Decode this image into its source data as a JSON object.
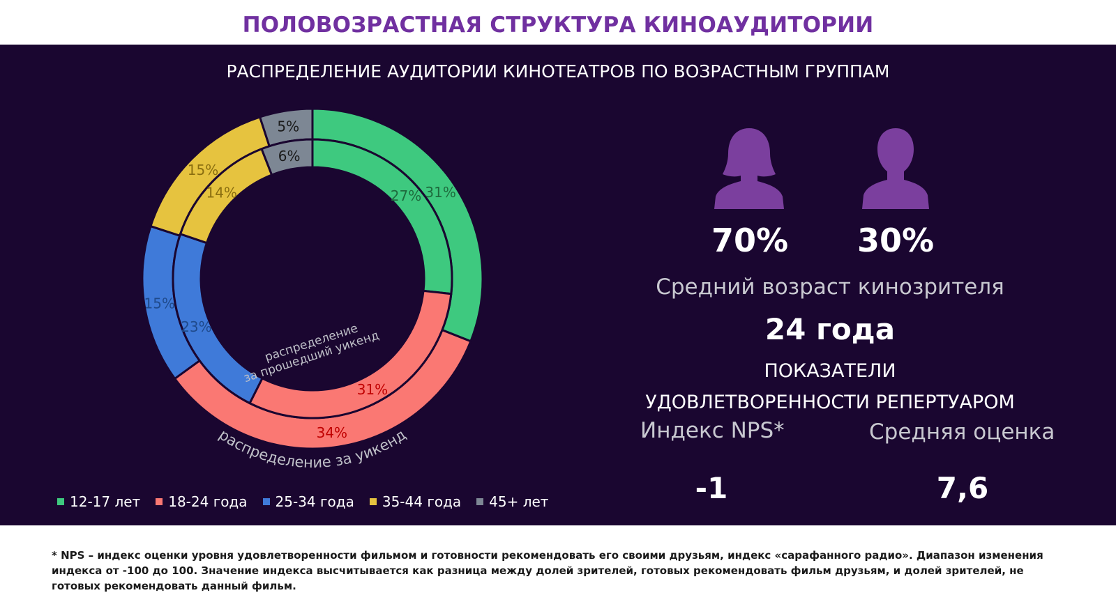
{
  "header": {
    "title": "ПОЛОВОЗРАСТНАЯ СТРУКТУРА КИНОАУДИТОРИИ",
    "subtitle": "РАСПРЕДЕЛЕНИЕ АУДИТОРИИ КИНОТЕАТРОВ ПО ВОЗРАСТНЫМ ГРУППАМ"
  },
  "chart_data": {
    "type": "pie",
    "subtype": "double-donut",
    "categories": [
      "12-17 лет",
      "18-24 года",
      "25-34 года",
      "35-44 года",
      "45+ лет"
    ],
    "colors": [
      "#3ec97f",
      "#fa7873",
      "#3f7ad9",
      "#e6c33f",
      "#7d8794"
    ],
    "series": [
      {
        "name": "распределение за уикенд",
        "ring": "outer",
        "values": [
          31,
          34,
          15,
          15,
          5
        ],
        "label_colors": [
          "#1e6b3d",
          "#c00000",
          "#1f4a8c",
          "#8a6e10",
          "#1a1a1a"
        ]
      },
      {
        "name": "распределение за прошедший уикенд",
        "ring": "inner",
        "values": [
          27,
          31,
          23,
          14,
          6
        ],
        "label_colors": [
          "#1e6b3d",
          "#c00000",
          "#1f4a8c",
          "#8a6e10",
          "#1a1a1a"
        ]
      }
    ],
    "legend_position": "bottom"
  },
  "gender": {
    "female_icon": "female-person-icon",
    "male_icon": "male-person-icon",
    "female_pct": "70%",
    "male_pct": "30%",
    "icon_color": "#7b3f9e"
  },
  "average_age": {
    "label": "Средний возраст кинозрителя",
    "value": "24 года"
  },
  "satisfaction": {
    "title_line1": "ПОКАЗАТЕЛИ",
    "title_line2": "УДОВЛЕТВОРЕННОСТИ РЕПЕРТУАРОМ",
    "nps_label": "Индекс NPS*",
    "nps_value": "-1",
    "avg_score_label": "Средняя оценка",
    "avg_score_value": "7,6"
  },
  "footnote": "* NPS – индекс оценки уровня удовлетворенности фильмом и готовности рекомендовать его своими друзьям, индекс «сарафанного радио».  Диапазон изменения индекса от -100 до 100. Значение индекса высчитывается как разница между долей зрителей, готовых рекомендовать фильм друзьям, и долей зрителей, не готовых рекомендовать данный фильм."
}
